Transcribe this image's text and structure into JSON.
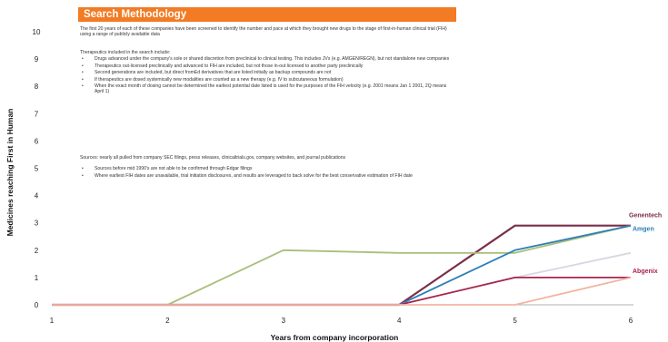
{
  "chart_data": {
    "type": "line",
    "xlabel": "Years from company incorporation",
    "ylabel": "Medicines reaching First in Human",
    "x_ticks": [
      1,
      2,
      3,
      4,
      5,
      6
    ],
    "y_ticks": [
      0,
      1,
      2,
      3,
      4,
      5,
      6,
      7,
      8,
      9,
      10
    ],
    "xlim": [
      1,
      6
    ],
    "ylim": [
      0,
      10
    ],
    "grid": false,
    "legend": "labels at right end of lines",
    "series": [
      {
        "name": "Genentech",
        "color": "#7b2e4a",
        "x": [
          1,
          2,
          3,
          4,
          5,
          6
        ],
        "y": [
          0,
          0,
          0,
          0,
          2.9,
          2.9
        ]
      },
      {
        "name": "",
        "color": "#a9bf7a",
        "x": [
          1,
          2,
          3,
          4,
          5,
          6
        ],
        "y": [
          0,
          0,
          2,
          1.9,
          1.9,
          2.9
        ]
      },
      {
        "name": "Amgen",
        "color": "#2e7fb8",
        "x": [
          1,
          2,
          3,
          4,
          5,
          6
        ],
        "y": [
          0,
          0,
          0,
          0,
          2,
          2.9
        ]
      },
      {
        "name": "",
        "color": "#d6d8e4",
        "x": [
          1,
          2,
          3,
          4,
          5,
          6
        ],
        "y": [
          0,
          0,
          0,
          0,
          1,
          1.9
        ]
      },
      {
        "name": "Abgenix",
        "color": "#a8234a",
        "x": [
          1,
          2,
          3,
          4,
          5,
          6
        ],
        "y": [
          0,
          0,
          0,
          0,
          1,
          1
        ]
      },
      {
        "name": "",
        "color": "#f2b5a0",
        "x": [
          1,
          2,
          3,
          4,
          5,
          6
        ],
        "y": [
          0,
          0,
          0,
          0,
          0,
          1
        ]
      }
    ]
  },
  "callout": {
    "title": "Search Methodology",
    "intro": "The first 20 years of each of these companies have been screened to identify the number and pace at which they brought new drugs to the stage of first-in-human clinical trial (FIH) using a range of publicly available data",
    "criteria_heading": "Therapeutics included in the search include:",
    "criteria": [
      "Drugs advanced under the company's sole or shared discretion from preclinical to clinical testing. This includes JVs (e.g. AMGEN/REGN), but not standalone new companies",
      "Therapeutics out-licensed preclinically and advanced to FIH are included, but not those in-out licensed to another party preclinically",
      "Second generations are included, but direct fromEd derivatives that are listed initially as backup compounds are not",
      "If therapeutics are dosed systemically new modalities are counted as a new therapy (e.g. IV to subcutaneous formulation)",
      "When the exact month of dosing cannot be determined the earliest potential date listed is used for the purposes of the FIH velocity (e.g. 2001 means Jan 1 2001, 2Q means April 1)"
    ],
    "sources_heading": "Sources: nearly all pulled from company SEC filings, press releases, clinicaltrials.gov, company websites, and journal publications",
    "sources": [
      "Sources before mid 1990's are not able to be confirmed through Edgar filings",
      "Where earliest FIH dates are unavailable, trial initiation disclosures, and results are leveraged to back solve for the best conservative estimation of FIH date"
    ]
  }
}
